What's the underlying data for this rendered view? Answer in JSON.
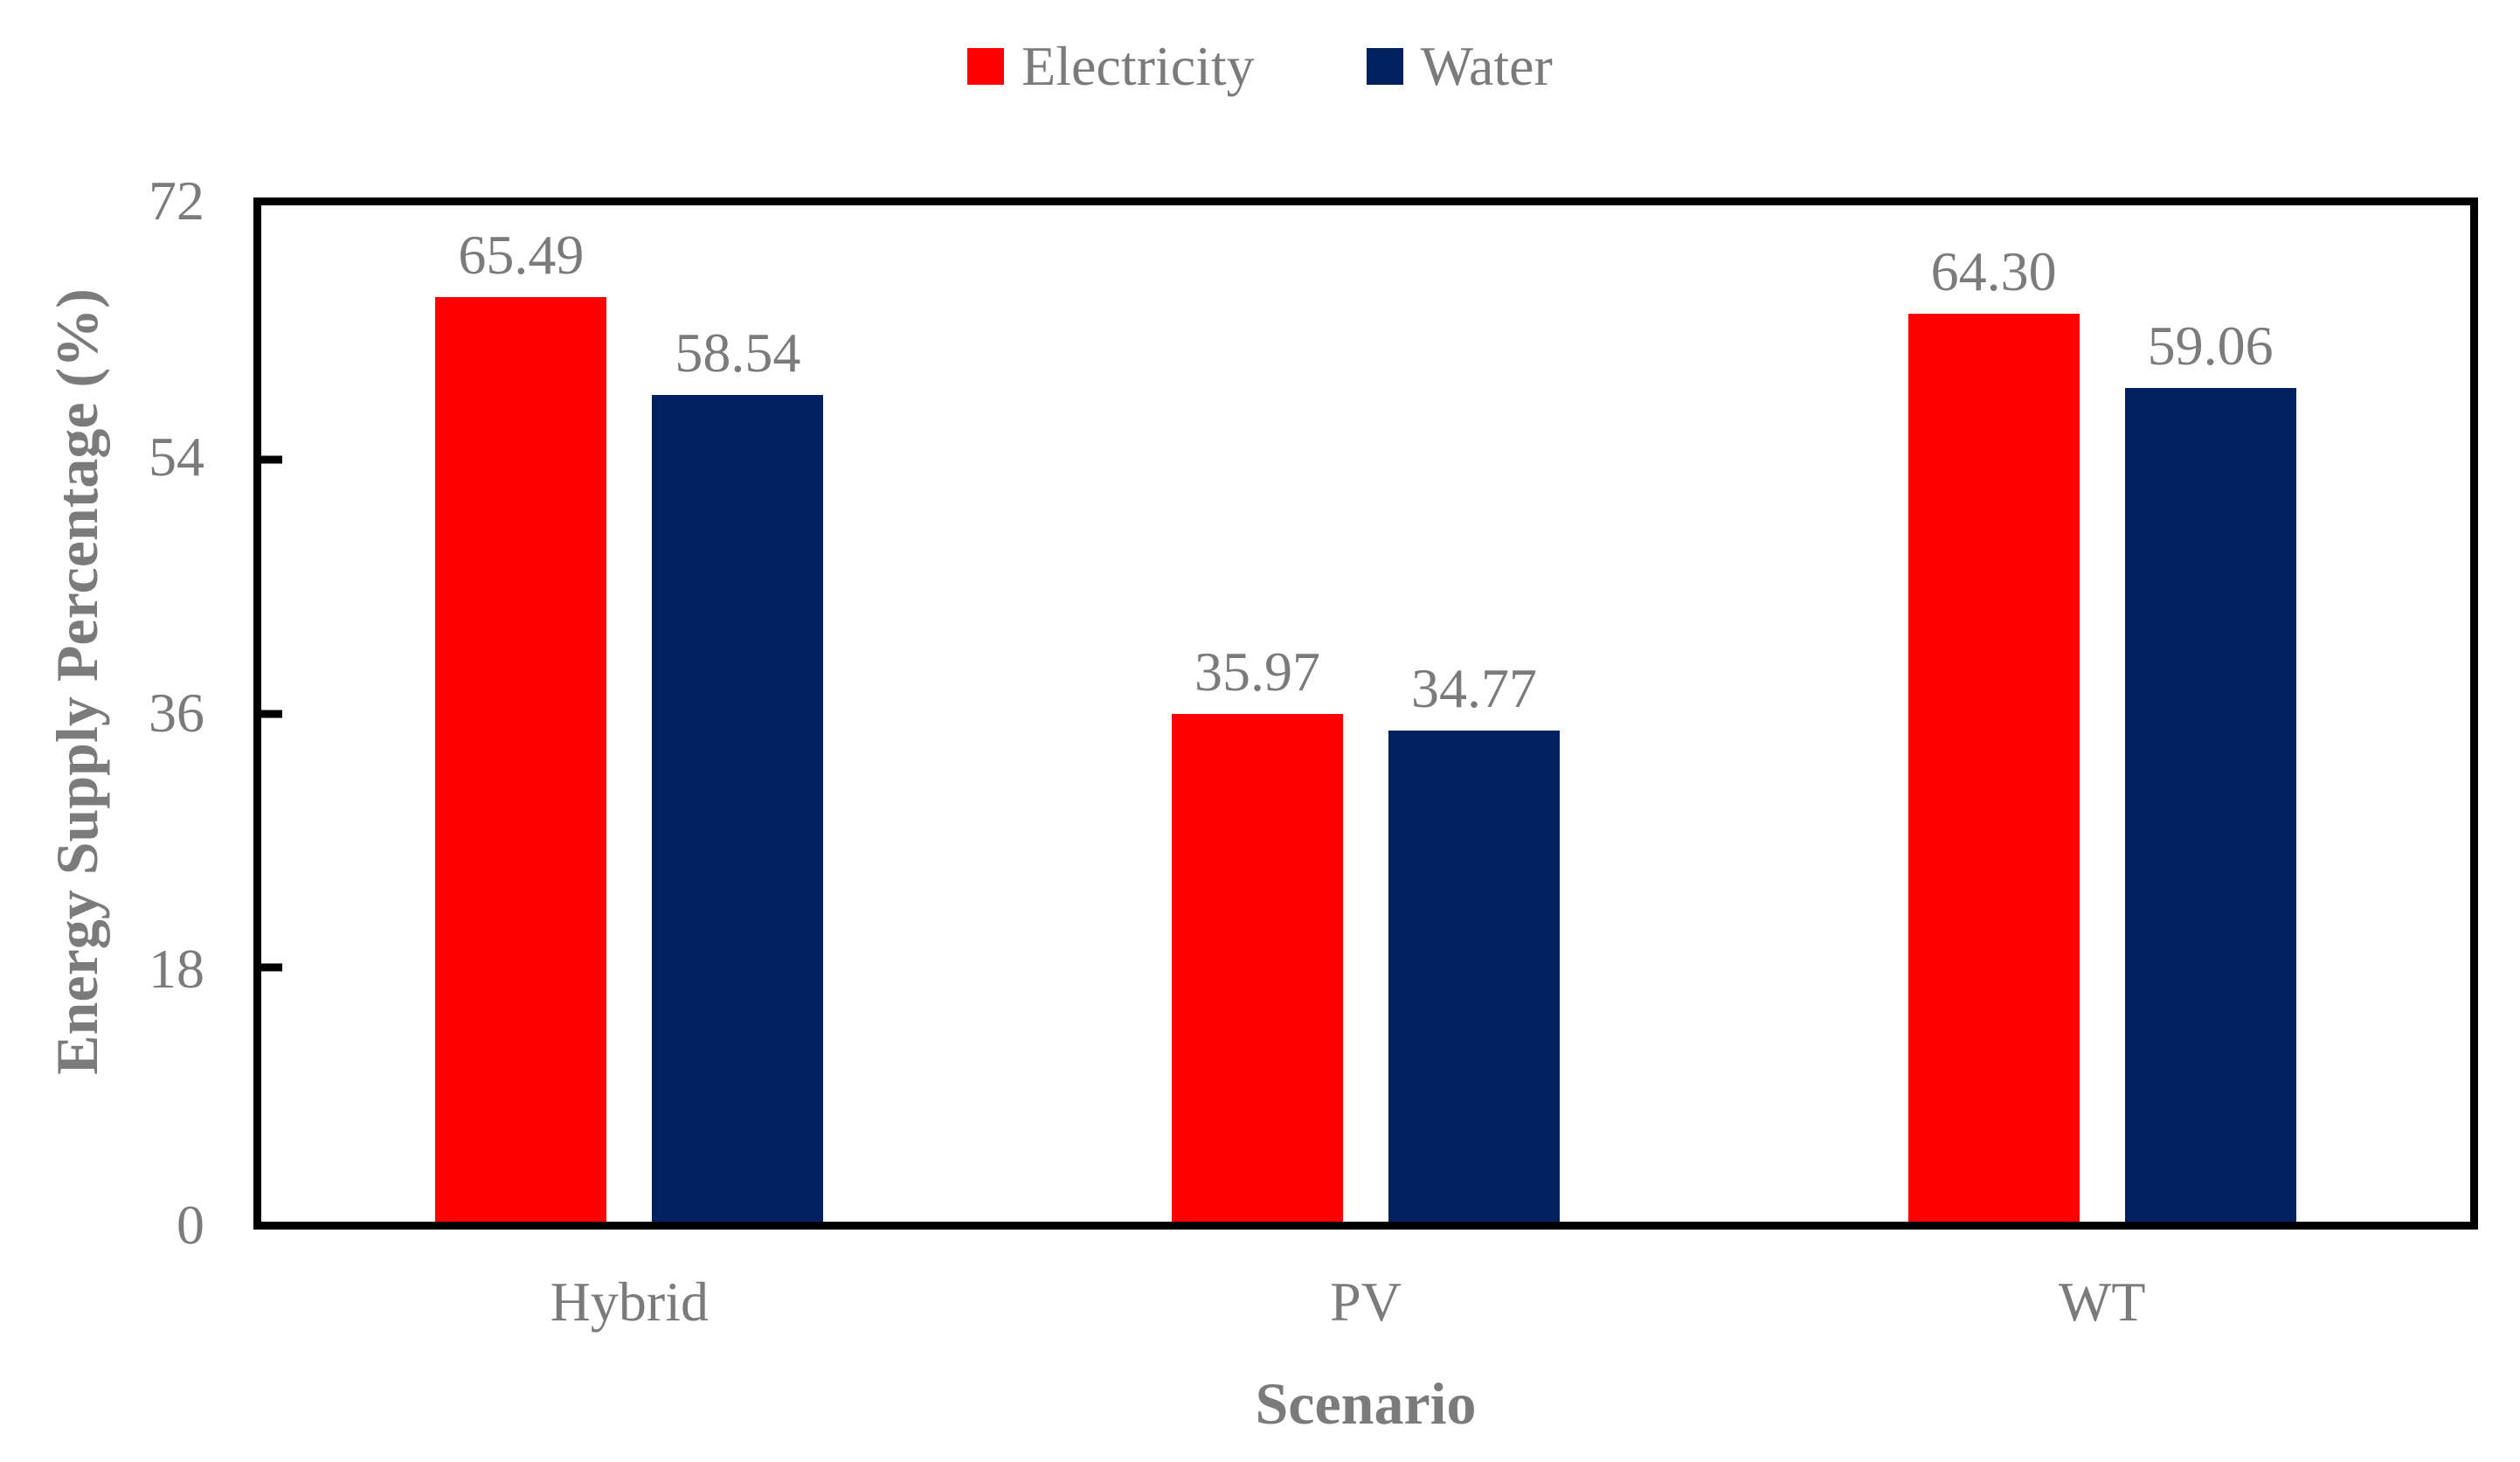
{
  "chart_data": {
    "type": "bar",
    "title": "",
    "categories": [
      "Hybrid",
      "PV",
      "WT"
    ],
    "series": [
      {
        "name": "Electricity",
        "color": "#FF0000",
        "values": [
          65.49,
          35.97,
          64.3
        ],
        "labels": [
          "65.49",
          "35.97",
          "64.30"
        ]
      },
      {
        "name": "Water",
        "color": "#002060",
        "values": [
          58.54,
          34.77,
          59.06
        ],
        "labels": [
          "58.54",
          "34.77",
          "59.06"
        ]
      }
    ],
    "xlabel": "Scenario",
    "ylabel": "Energy Supply Percentage (%)",
    "ylim": [
      0,
      72
    ],
    "yticks": [
      0,
      18,
      36,
      54,
      72
    ],
    "grid": false,
    "legend_position": "top",
    "axis_color": "#000000",
    "text_color": "#7b7b7b"
  }
}
